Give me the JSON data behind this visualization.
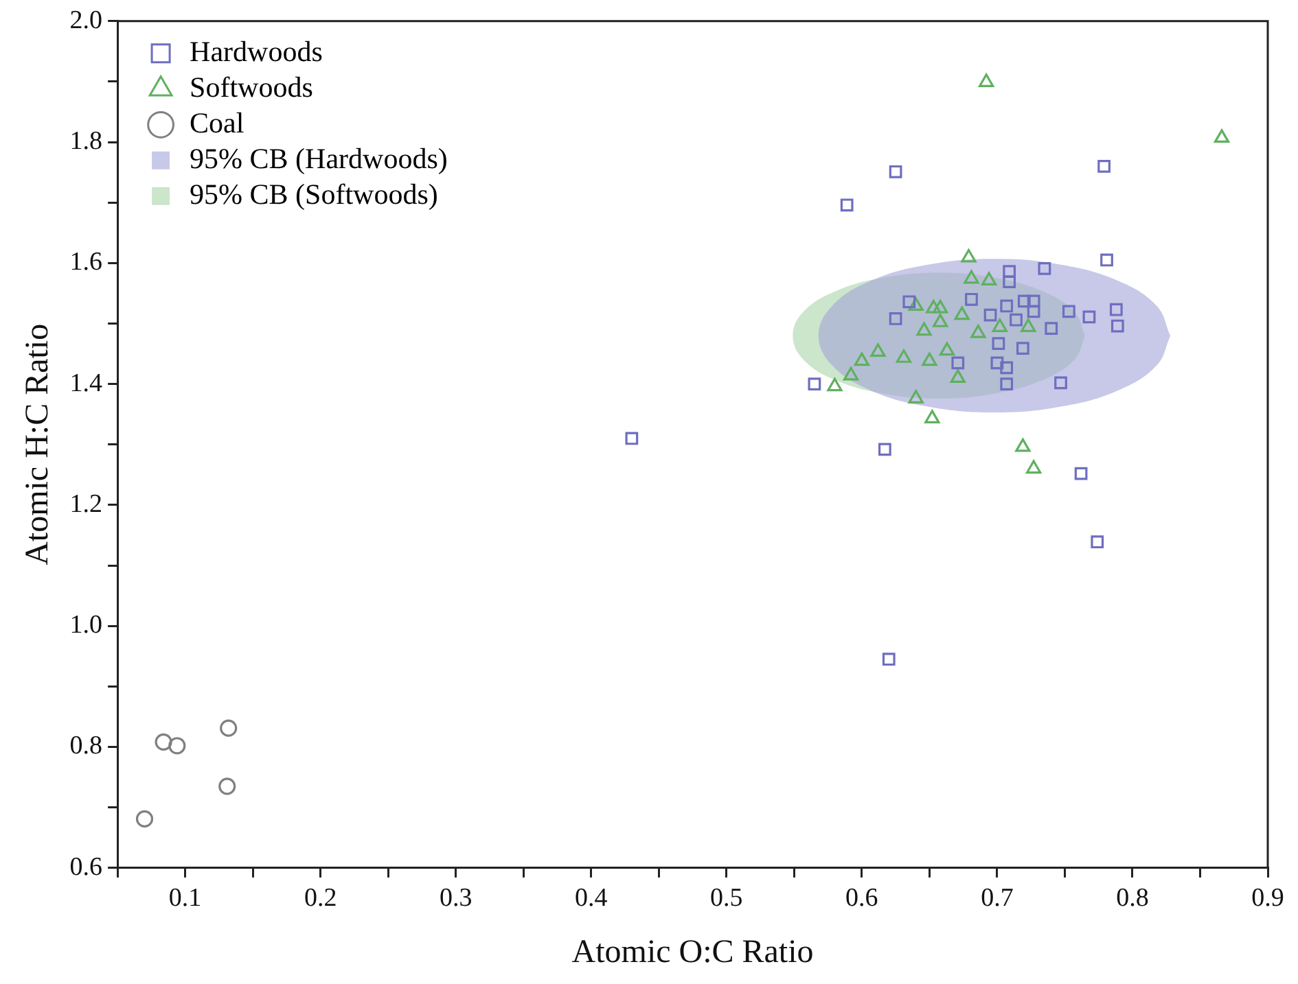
{
  "chart_data": {
    "type": "scatter",
    "xlabel": "Atomic O:C Ratio",
    "ylabel": "Atomic H:C Ratio",
    "xlim": [
      0.05,
      0.9
    ],
    "xticks": [
      {
        "value": 0.05,
        "label": null
      },
      0.1,
      {
        "value": 0.15,
        "label": null
      },
      0.2,
      {
        "value": 0.25,
        "label": null
      },
      0.3,
      {
        "value": 0.35,
        "label": null
      },
      0.4,
      {
        "value": 0.45,
        "label": null
      },
      0.5,
      {
        "value": 0.55,
        "label": null
      },
      0.6,
      {
        "value": 0.65,
        "label": null
      },
      0.7,
      {
        "value": 0.75,
        "label": null
      },
      0.8,
      {
        "value": 0.85,
        "label": null
      },
      0.9
    ],
    "ylim": [
      0.6,
      2.0
    ],
    "yticks": [
      0.6,
      {
        "value": 0.7,
        "label": null
      },
      0.8,
      {
        "value": 0.9,
        "label": null
      },
      {
        "value": 1.0,
        "label": "1.0"
      },
      {
        "value": 1.1,
        "label": null
      },
      1.2,
      {
        "value": 1.3,
        "label": null
      },
      1.4,
      {
        "value": 1.5,
        "label": null
      },
      1.6,
      {
        "value": 1.7,
        "label": null
      },
      1.8,
      {
        "value": 1.9,
        "label": null
      },
      {
        "value": 2.0,
        "label": "2.0"
      }
    ],
    "grid": false,
    "legend": "top left",
    "series": [
      {
        "name": "Hardwoods",
        "type": "scatter",
        "marker": "square",
        "color": "#6e6ec0",
        "x": [
          0.625,
          0.589,
          0.779,
          0.781,
          0.565,
          0.625,
          0.635,
          0.681,
          0.709,
          0.709,
          0.735,
          0.695,
          0.707,
          0.714,
          0.72,
          0.727,
          0.727,
          0.753,
          0.768,
          0.788,
          0.789,
          0.74,
          0.701,
          0.719,
          0.671,
          0.7,
          0.707,
          0.707,
          0.747,
          0.617,
          0.762,
          0.774,
          0.62,
          0.43
        ],
        "values": [
          1.751,
          1.696,
          1.76,
          1.605,
          1.4,
          1.508,
          1.536,
          1.54,
          1.586,
          1.569,
          1.591,
          1.514,
          1.529,
          1.506,
          1.537,
          1.537,
          1.52,
          1.52,
          1.511,
          1.523,
          1.496,
          1.492,
          1.467,
          1.459,
          1.435,
          1.435,
          1.427,
          1.4,
          1.402,
          1.292,
          1.252,
          1.139,
          0.945,
          1.31
        ]
      },
      {
        "name": "Softwoods",
        "type": "scatter",
        "marker": "triangle",
        "color": "#5fb05f",
        "x": [
          0.692,
          0.866,
          0.679,
          0.681,
          0.694,
          0.64,
          0.653,
          0.658,
          0.674,
          0.658,
          0.646,
          0.686,
          0.702,
          0.723,
          0.612,
          0.6,
          0.631,
          0.65,
          0.663,
          0.592,
          0.58,
          0.671,
          0.64,
          0.652,
          0.719,
          0.727
        ],
        "values": [
          1.899,
          1.807,
          1.609,
          1.574,
          1.571,
          1.529,
          1.525,
          1.525,
          1.514,
          1.502,
          1.488,
          1.484,
          1.494,
          1.494,
          1.453,
          1.438,
          1.443,
          1.438,
          1.455,
          1.414,
          1.396,
          1.41,
          1.376,
          1.343,
          1.296,
          1.26
        ]
      },
      {
        "name": "Coal",
        "type": "scatter",
        "marker": "circle",
        "color": "#808080",
        "x": [
          0.07,
          0.084,
          0.094,
          0.132,
          0.131
        ],
        "values": [
          0.681,
          0.808,
          0.802,
          0.831,
          0.735
        ]
      },
      {
        "name": "95% CB (Hardwoods)",
        "type": "area",
        "color": "#a4a4d8",
        "x": [
          0.828,
          0.818,
          0.79,
          0.748,
          0.698,
          0.648,
          0.606,
          0.578,
          0.568,
          0.578,
          0.606,
          0.648,
          0.698,
          0.748,
          0.79,
          0.818,
          0.828
        ],
        "values": [
          1.48,
          1.529,
          1.57,
          1.597,
          1.607,
          1.597,
          1.57,
          1.529,
          1.48,
          1.431,
          1.39,
          1.363,
          1.353,
          1.363,
          1.39,
          1.431,
          1.48
        ]
      },
      {
        "name": "95% CB (Softwoods)",
        "type": "area",
        "color": "#a8d6a8",
        "x": [
          0.765,
          0.757,
          0.733,
          0.698,
          0.657,
          0.616,
          0.581,
          0.557,
          0.549,
          0.557,
          0.581,
          0.616,
          0.657,
          0.698,
          0.733,
          0.757,
          0.765
        ],
        "values": [
          1.48,
          1.52,
          1.554,
          1.576,
          1.584,
          1.576,
          1.554,
          1.52,
          1.48,
          1.44,
          1.406,
          1.384,
          1.376,
          1.384,
          1.406,
          1.44,
          1.48
        ]
      }
    ]
  }
}
